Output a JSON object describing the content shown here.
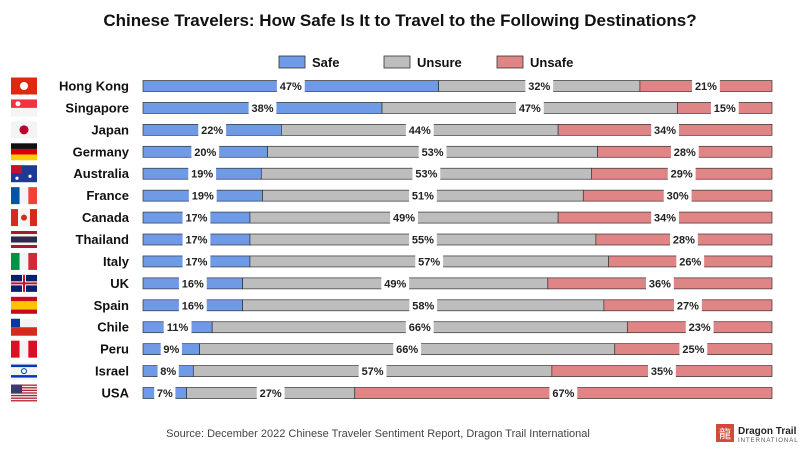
{
  "chart_data": {
    "type": "bar",
    "orientation": "horizontal",
    "stacked": true,
    "title": "Chinese Travelers: How Safe Is It to Travel to the Following Destinations?",
    "categories": [
      "Hong Kong",
      "Singapore",
      "Japan",
      "Germany",
      "Australia",
      "France",
      "Canada",
      "Thailand",
      "Italy",
      "UK",
      "Spain",
      "Chile",
      "Peru",
      "Israel",
      "USA"
    ],
    "series": [
      {
        "name": "Safe",
        "color": "#6f9ae6",
        "values": [
          47,
          38,
          22,
          20,
          19,
          19,
          17,
          17,
          17,
          16,
          16,
          11,
          9,
          8,
          7
        ]
      },
      {
        "name": "Unsure",
        "color": "#bdbdbd",
        "values": [
          32,
          47,
          44,
          53,
          53,
          51,
          49,
          55,
          57,
          49,
          58,
          66,
          66,
          57,
          27
        ]
      },
      {
        "name": "Unsafe",
        "color": "#e08585",
        "values": [
          21,
          15,
          34,
          28,
          29,
          30,
          34,
          28,
          26,
          36,
          27,
          23,
          25,
          35,
          67
        ]
      }
    ],
    "value_suffix": "%",
    "xlim": [
      0,
      100
    ],
    "legend_position": "top-center",
    "grid": false
  },
  "source": "Source: December 2022 Chinese Traveler Sentiment Report, Dragon Trail International",
  "logo": {
    "name": "Dragon Trail",
    "sub": "INTERNATIONAL",
    "glyph": "龍"
  },
  "flag_icons": [
    "hong-kong-flag-icon",
    "singapore-flag-icon",
    "japan-flag-icon",
    "germany-flag-icon",
    "australia-flag-icon",
    "france-flag-icon",
    "canada-flag-icon",
    "thailand-flag-icon",
    "italy-flag-icon",
    "uk-flag-icon",
    "spain-flag-icon",
    "chile-flag-icon",
    "peru-flag-icon",
    "israel-flag-icon",
    "usa-flag-icon"
  ]
}
